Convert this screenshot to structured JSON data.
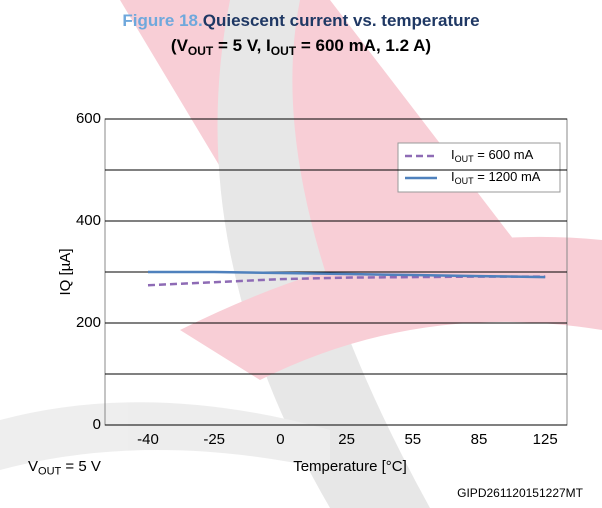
{
  "chart_data": {
    "type": "line",
    "figure_label": "Figure 18.",
    "title": "Quiescent current vs. temperature",
    "subtitle": [
      "(V",
      "OUT",
      " = 5 V, I",
      "OUT",
      " = 600 mA, 1.2 A)"
    ],
    "y_label": "IQ  [µA]",
    "x_label": "Temperature [°C]",
    "note": [
      "V",
      "OUT",
      " = 5 V"
    ],
    "figure_code": "GIPD261120151227MT",
    "categories": [
      "-40",
      "-25",
      "0",
      "25",
      "55",
      "85",
      "125"
    ],
    "series": [
      {
        "name": [
          "I",
          "OUT",
          "  = 600 mA"
        ],
        "color": "#8e6bb5",
        "line_style": "dashed",
        "values": [
          274,
          280,
          286,
          289,
          290,
          291,
          291
        ]
      },
      {
        "name": [
          "I",
          "OUT",
          "  = 1200 mA"
        ],
        "color": "#4f81bd",
        "line_style": "solid",
        "values": [
          300,
          300,
          298,
          296,
          294,
          292,
          290
        ]
      }
    ],
    "ylim": [
      0,
      600
    ],
    "yticks": [
      0,
      200,
      400,
      600
    ],
    "y_minor_ticks": [
      100,
      300,
      500
    ],
    "grid": true,
    "legend_position": "upper right"
  }
}
